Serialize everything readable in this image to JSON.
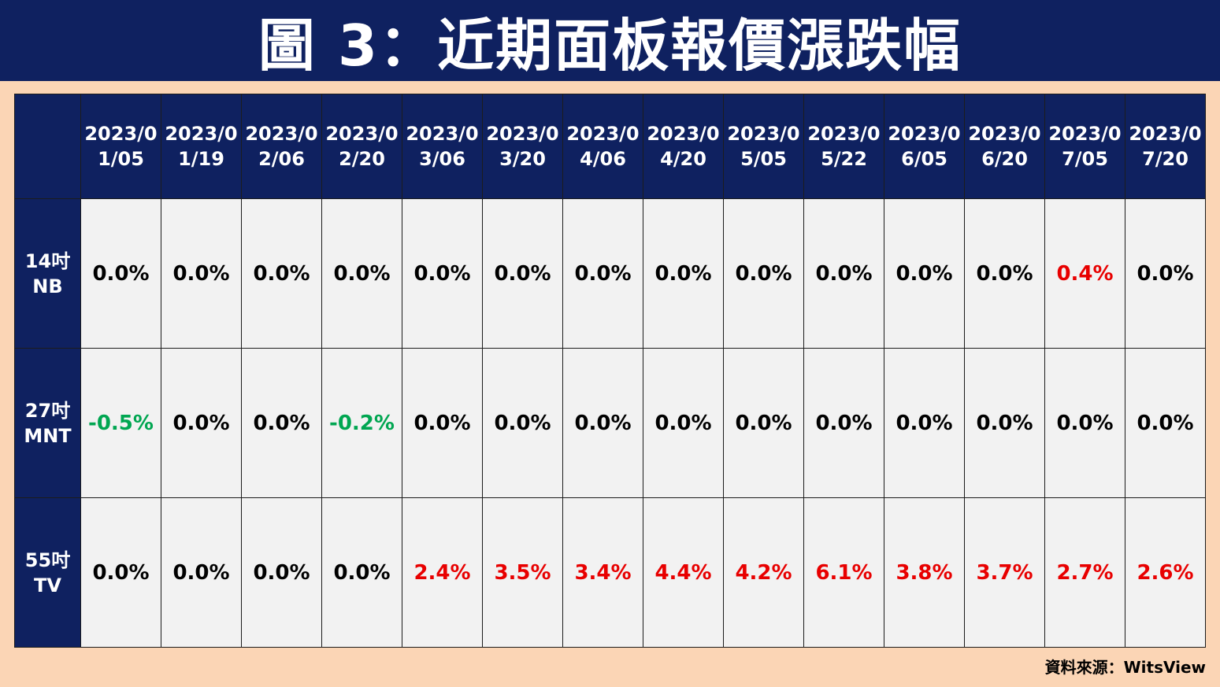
{
  "title": "圖 3：近期面板報價漲跌幅",
  "source": "資料來源：WitsView",
  "colors": {
    "header_bg": "#0f2160",
    "page_bg": "#fbd5b5",
    "cell_bg": "#f2f2f2",
    "positive": "#e80000",
    "negative": "#00a651",
    "neutral": "#000000"
  },
  "chart_data": {
    "type": "table",
    "columns": [
      "2023/01/05",
      "2023/01/19",
      "2023/02/06",
      "2023/02/20",
      "2023/03/06",
      "2023/03/20",
      "2023/04/06",
      "2023/04/20",
      "2023/05/05",
      "2023/05/22",
      "2023/06/05",
      "2023/06/20",
      "2023/07/05",
      "2023/07/20"
    ],
    "rows": [
      {
        "label": "14吋 NB",
        "values": [
          "0.0%",
          "0.0%",
          "0.0%",
          "0.0%",
          "0.0%",
          "0.0%",
          "0.0%",
          "0.0%",
          "0.0%",
          "0.0%",
          "0.0%",
          "0.0%",
          "0.4%",
          "0.0%"
        ]
      },
      {
        "label": "27吋 MNT",
        "values": [
          "-0.5%",
          "0.0%",
          "0.0%",
          "-0.2%",
          "0.0%",
          "0.0%",
          "0.0%",
          "0.0%",
          "0.0%",
          "0.0%",
          "0.0%",
          "0.0%",
          "0.0%",
          "0.0%"
        ]
      },
      {
        "label": "55吋 TV",
        "values": [
          "0.0%",
          "0.0%",
          "0.0%",
          "0.0%",
          "2.4%",
          "3.5%",
          "3.4%",
          "4.4%",
          "4.2%",
          "6.1%",
          "3.8%",
          "3.7%",
          "2.7%",
          "2.6%"
        ]
      }
    ]
  }
}
